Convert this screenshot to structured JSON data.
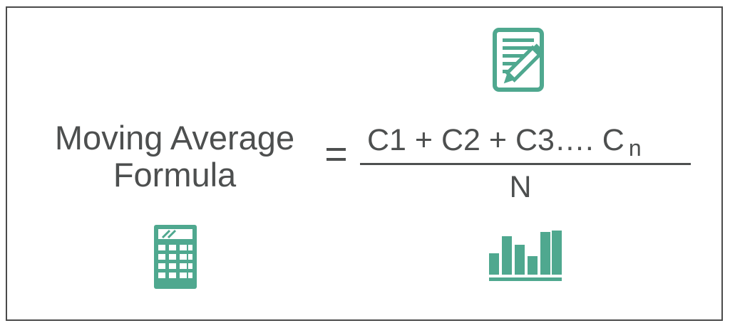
{
  "formula": {
    "title_line1": "Moving Average",
    "title_line2": "Formula",
    "equals_sign": "=",
    "numerator": "C1 + C2 + C3…. C",
    "numerator_subscript": "n",
    "denominator": "N"
  },
  "icons": {
    "document": "document-edit-icon",
    "calculator": "calculator-icon",
    "bar_chart": "bar-chart-icon"
  },
  "colors": {
    "accent": "#4fa88f",
    "text": "#4d4f4f",
    "border": "#4a4a4a"
  }
}
